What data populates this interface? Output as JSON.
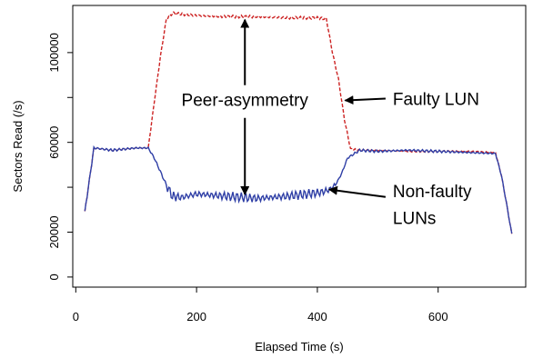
{
  "chart_data": {
    "type": "line",
    "title": "",
    "xlabel": "Elapsed Time (s)",
    "ylabel": "Sectors Read (/s)",
    "xlim": [
      -5,
      745
    ],
    "ylim": [
      -4500,
      121000
    ],
    "x_ticks": [
      0,
      200,
      400,
      600
    ],
    "x_tick_labels": [
      "0",
      "200",
      "400",
      "600"
    ],
    "y_ticks": [
      0,
      20000,
      60000,
      100000
    ],
    "y_tick_labels": [
      "0",
      "20000",
      "60000",
      "100000"
    ],
    "y_minor_ticks": [
      40000,
      80000
    ],
    "grid": false,
    "legend": "none",
    "series": [
      {
        "color": "#cc2222",
        "dash": "dashed",
        "x": [
          15,
          30,
          45,
          60,
          80,
          100,
          120,
          130,
          140,
          150,
          160,
          200,
          250,
          300,
          350,
          400,
          415,
          425,
          435,
          445,
          455,
          470,
          500,
          550,
          600,
          650,
          695,
          705,
          715,
          722
        ],
        "y": [
          29000,
          57500,
          57000,
          56500,
          57000,
          57500,
          57500,
          78000,
          98000,
          115000,
          117500,
          116500,
          116000,
          116000,
          115500,
          115500,
          115000,
          100000,
          88000,
          70000,
          57000,
          56500,
          56500,
          56000,
          56000,
          56000,
          55500,
          45000,
          30000,
          19000
        ]
      },
      {
        "color": "#2f3fa6",
        "dash": "solid",
        "x": [
          15,
          30,
          45,
          60,
          80,
          100,
          120,
          130,
          140,
          150,
          160,
          175,
          200,
          250,
          300,
          350,
          400,
          410,
          420,
          430,
          440,
          450,
          470,
          500,
          550,
          600,
          650,
          695,
          705,
          715,
          722
        ],
        "y": [
          29000,
          57500,
          57000,
          56500,
          57000,
          57500,
          57500,
          53000,
          47000,
          41000,
          36000,
          35500,
          37000,
          36000,
          35000,
          36000,
          37500,
          38000,
          39000,
          41000,
          46000,
          53000,
          56500,
          56000,
          56500,
          56000,
          55500,
          55000,
          45000,
          30000,
          19000
        ]
      }
    ],
    "annotations": [
      {
        "text": "Peer-asymmetry",
        "x": 280,
        "y": 79000
      },
      {
        "text": "Faulty LUN",
        "x": 525,
        "y": 79500
      },
      {
        "text": "Non-faulty",
        "x": 525,
        "y": 38500
      },
      {
        "text": "LUNs",
        "x": 525,
        "y": 26500
      }
    ]
  }
}
